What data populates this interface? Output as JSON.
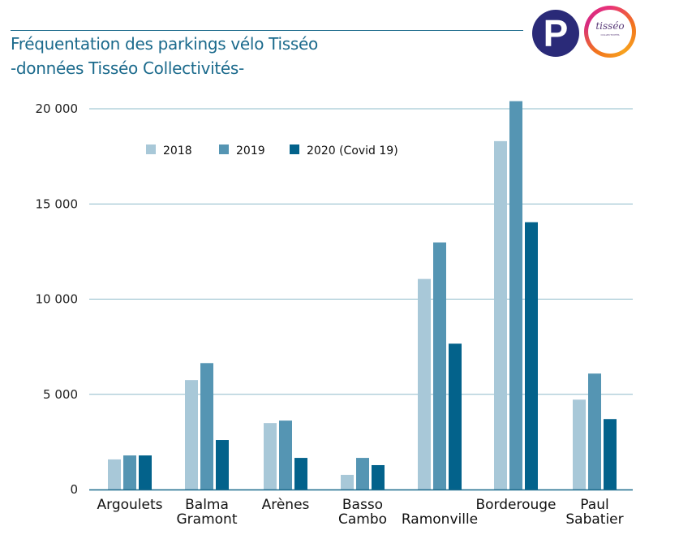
{
  "header": {
    "title_line1": "Fréquentation des parkings vélo Tisséo",
    "title_line2": "-données Tisséo Collectivités-",
    "logo_parking": "P",
    "logo_brand": "tisséo",
    "logo_brand_sub": "COLLECTIVITÉS"
  },
  "chart_data": {
    "type": "bar",
    "title": "Fréquentation des parkings vélo Tisséo -données Tisséo Collectivités-",
    "xlabel": "",
    "ylabel": "",
    "ylim": [
      0,
      20000
    ],
    "yticks": [
      0,
      5000,
      10000,
      15000,
      20000
    ],
    "ytick_labels": [
      "0",
      "5 000",
      "10 000",
      "15 000",
      "20 000"
    ],
    "grid": true,
    "legend_position": "top-left",
    "categories": [
      [
        "Argoulets"
      ],
      [
        "Balma",
        "Gramont"
      ],
      [
        "Arènes"
      ],
      [
        "Basso",
        "Cambo"
      ],
      [
        "Ramonville"
      ],
      [
        "Borderouge"
      ],
      [
        "Paul",
        "Sabatier"
      ]
    ],
    "category_label_rows": [
      0,
      0,
      0,
      0,
      1,
      0,
      0
    ],
    "series": [
      {
        "name": "2018",
        "color": "#a8c8d8",
        "values": [
          1580,
          5750,
          3490,
          770,
          11060,
          18300,
          4720
        ]
      },
      {
        "name": "2019",
        "color": "#5595b3",
        "values": [
          1790,
          6640,
          3620,
          1660,
          12980,
          20400,
          6090
        ]
      },
      {
        "name": "2020 (Covid 19)",
        "color": "#03628b",
        "values": [
          1790,
          2600,
          1660,
          1280,
          7660,
          14040,
          3700
        ]
      }
    ]
  }
}
